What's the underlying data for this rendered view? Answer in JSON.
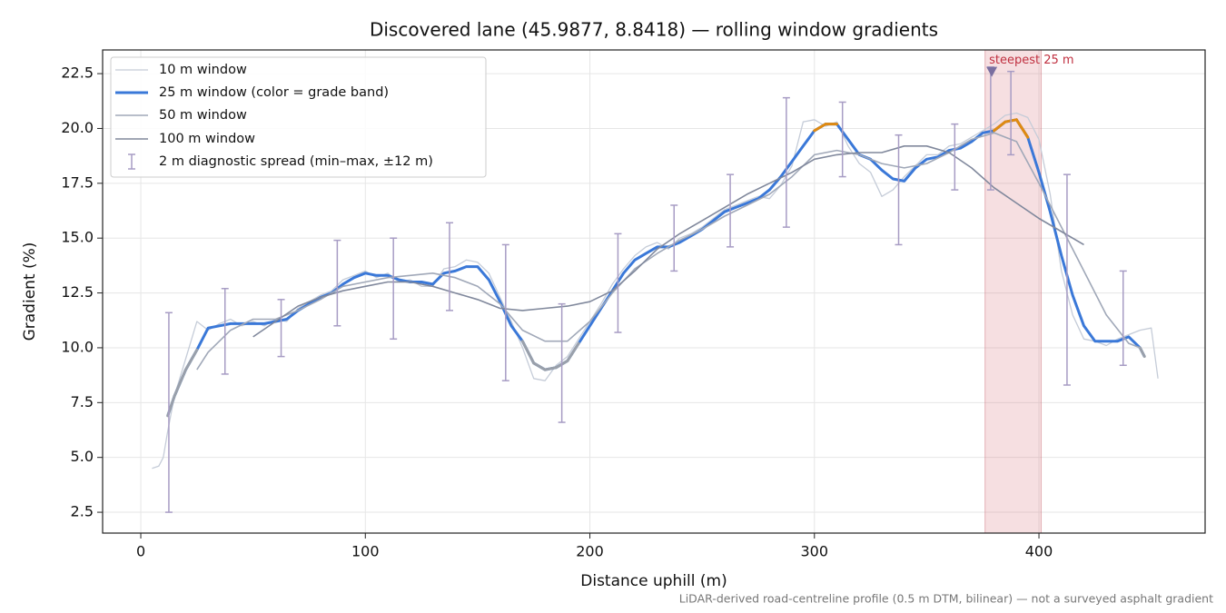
{
  "chart_data": {
    "type": "line",
    "title": "Discovered lane (45.9877, 8.8418) — rolling window gradients",
    "x_label": "Distance uphill (m)",
    "y_label": "Gradient (%)",
    "footnote": "LiDAR-derived road-centreline profile (0.5 m DTM, bilinear) — not a surveyed asphalt gradient",
    "xlim": [
      -17,
      474
    ],
    "ylim": [
      1.55,
      23.58
    ],
    "xticks": [
      0,
      100,
      200,
      300,
      400
    ],
    "yticks": [
      2.5,
      5.0,
      7.5,
      10.0,
      12.5,
      15.0,
      17.5,
      20.0,
      22.5
    ],
    "grid": true,
    "legend": "upper left",
    "series": [
      {
        "name": "10 m window",
        "color": "#c5ccd8",
        "width": 1.3,
        "x": [
          5,
          8,
          10,
          12,
          15,
          20,
          25,
          30,
          35,
          40,
          45,
          50,
          55,
          60,
          65,
          70,
          75,
          80,
          85,
          90,
          95,
          100,
          105,
          110,
          115,
          120,
          125,
          130,
          135,
          140,
          145,
          150,
          155,
          160,
          165,
          170,
          175,
          180,
          185,
          190,
          195,
          200,
          205,
          210,
          215,
          220,
          225,
          230,
          235,
          240,
          245,
          250,
          255,
          260,
          265,
          270,
          275,
          280,
          285,
          290,
          295,
          300,
          305,
          310,
          315,
          320,
          325,
          330,
          335,
          340,
          345,
          350,
          355,
          360,
          365,
          370,
          375,
          380,
          385,
          390,
          395,
          400,
          405,
          410,
          415,
          420,
          425,
          430,
          435,
          440,
          445,
          450,
          453
        ],
        "values": [
          4.5,
          4.6,
          5.0,
          6.2,
          7.8,
          9.5,
          11.2,
          10.8,
          11.1,
          11.3,
          11.0,
          11.2,
          11.0,
          11.3,
          11.2,
          11.8,
          12.1,
          12.4,
          12.6,
          13.1,
          13.3,
          13.5,
          13.2,
          13.4,
          13.0,
          13.1,
          12.8,
          12.8,
          13.6,
          13.7,
          14.0,
          13.9,
          13.4,
          12.3,
          11.2,
          10.0,
          8.6,
          8.5,
          9.2,
          9.6,
          10.4,
          11.2,
          12.0,
          12.9,
          13.6,
          14.2,
          14.6,
          14.8,
          14.5,
          15.0,
          15.2,
          15.5,
          15.9,
          16.3,
          16.5,
          16.7,
          16.9,
          16.8,
          17.4,
          18.3,
          20.3,
          20.4,
          20.1,
          20.3,
          19.2,
          18.4,
          18.0,
          16.9,
          17.2,
          17.8,
          18.3,
          18.8,
          18.8,
          19.2,
          19.3,
          19.6,
          19.9,
          20.2,
          20.6,
          20.7,
          20.5,
          19.5,
          17.0,
          13.5,
          11.5,
          10.4,
          10.3,
          10.1,
          10.4,
          10.6,
          10.8,
          10.9,
          8.6
        ]
      },
      {
        "name": "25 m window (color = grade band)",
        "color": "#3a78d8",
        "width": 3,
        "x": [
          12,
          15,
          20,
          25,
          30,
          35,
          40,
          45,
          50,
          55,
          60,
          65,
          70,
          75,
          80,
          85,
          90,
          95,
          100,
          105,
          110,
          115,
          120,
          125,
          130,
          135,
          140,
          145,
          150,
          155,
          160,
          165,
          170,
          175,
          180,
          185,
          190,
          195,
          200,
          205,
          210,
          215,
          220,
          225,
          230,
          235,
          240,
          245,
          250,
          255,
          260,
          265,
          270,
          275,
          280,
          285,
          290,
          295,
          300,
          305,
          310,
          315,
          320,
          325,
          330,
          335,
          340,
          345,
          350,
          355,
          360,
          365,
          370,
          375,
          380,
          385,
          390,
          395,
          400,
          405,
          410,
          415,
          420,
          425,
          430,
          435,
          440,
          445,
          447
        ],
        "values": [
          6.9,
          7.8,
          9.0,
          9.9,
          10.9,
          11.0,
          11.1,
          11.1,
          11.1,
          11.1,
          11.2,
          11.3,
          11.7,
          12.0,
          12.3,
          12.5,
          12.9,
          13.2,
          13.4,
          13.3,
          13.3,
          13.1,
          13.0,
          13.0,
          12.9,
          13.4,
          13.5,
          13.7,
          13.7,
          13.1,
          12.1,
          11.0,
          10.3,
          9.3,
          9.0,
          9.1,
          9.4,
          10.2,
          11.0,
          11.8,
          12.6,
          13.4,
          14.0,
          14.3,
          14.6,
          14.6,
          14.8,
          15.1,
          15.4,
          15.8,
          16.2,
          16.4,
          16.6,
          16.8,
          17.2,
          17.8,
          18.5,
          19.2,
          19.9,
          20.2,
          20.2,
          19.5,
          18.8,
          18.6,
          18.1,
          17.7,
          17.6,
          18.2,
          18.6,
          18.7,
          19.0,
          19.1,
          19.4,
          19.8,
          19.9,
          20.3,
          20.4,
          19.6,
          18.0,
          16.2,
          14.2,
          12.4,
          11.0,
          10.3,
          10.3,
          10.3,
          10.5,
          10.0,
          9.6
        ]
      },
      {
        "name": "50 m window",
        "color": "#a0a8b8",
        "width": 1.6,
        "x": [
          25,
          30,
          40,
          50,
          60,
          70,
          80,
          90,
          100,
          110,
          120,
          130,
          140,
          150,
          160,
          170,
          180,
          190,
          200,
          210,
          220,
          230,
          240,
          250,
          260,
          270,
          280,
          290,
          300,
          310,
          320,
          330,
          340,
          350,
          360,
          370,
          380,
          390,
          400,
          410,
          420,
          430,
          440,
          445
        ],
        "values": [
          9.0,
          9.8,
          10.8,
          11.3,
          11.3,
          11.7,
          12.2,
          12.8,
          13.0,
          13.2,
          13.3,
          13.4,
          13.2,
          12.8,
          12.0,
          10.8,
          10.3,
          10.3,
          11.2,
          12.5,
          13.6,
          14.3,
          14.9,
          15.4,
          16.0,
          16.5,
          17.0,
          17.8,
          18.8,
          19.0,
          18.8,
          18.4,
          18.2,
          18.4,
          18.9,
          19.5,
          19.8,
          19.4,
          17.5,
          15.5,
          13.5,
          11.5,
          10.2,
          10.0
        ]
      },
      {
        "name": "100 m window",
        "color": "#80889c",
        "width": 1.6,
        "x": [
          50,
          60,
          70,
          80,
          90,
          100,
          110,
          120,
          130,
          140,
          150,
          160,
          170,
          180,
          190,
          200,
          210,
          220,
          230,
          240,
          250,
          260,
          270,
          280,
          290,
          300,
          310,
          320,
          330,
          340,
          350,
          360,
          370,
          380,
          390,
          400,
          410,
          420
        ],
        "values": [
          10.5,
          11.2,
          11.9,
          12.3,
          12.6,
          12.8,
          13.0,
          13.0,
          12.8,
          12.5,
          12.2,
          11.8,
          11.7,
          11.8,
          11.9,
          12.1,
          12.6,
          13.5,
          14.5,
          15.2,
          15.8,
          16.4,
          17.0,
          17.5,
          18.0,
          18.6,
          18.8,
          18.9,
          18.9,
          19.2,
          19.2,
          18.9,
          18.2,
          17.3,
          16.6,
          15.9,
          15.3,
          14.7
        ]
      }
    ],
    "grade_bands": [
      {
        "range": [
          null,
          10
        ],
        "color": "#9aa0aa"
      },
      {
        "range": [
          20,
          null
        ],
        "color": "#e08a10"
      }
    ],
    "error_bars": {
      "name": "2 m diagnostic spread (min–max, ±12 m)",
      "color": "#a79cc4",
      "x": [
        12.5,
        37.5,
        62.5,
        87.5,
        112.5,
        137.5,
        162.5,
        187.5,
        212.5,
        237.5,
        262.5,
        287.5,
        312.5,
        337.5,
        362.5,
        378.5,
        387.5,
        412.5,
        437.5
      ],
      "low": [
        2.5,
        8.8,
        9.6,
        11.0,
        10.4,
        11.7,
        8.5,
        6.6,
        10.7,
        13.5,
        14.6,
        15.5,
        17.8,
        14.7,
        17.2,
        17.2,
        18.8,
        8.3,
        9.2
      ],
      "high": [
        11.6,
        12.7,
        12.2,
        14.9,
        15.0,
        15.7,
        14.7,
        12.0,
        15.2,
        16.5,
        17.9,
        21.4,
        21.2,
        19.7,
        20.2,
        22.8,
        22.6,
        17.9,
        13.5
      ]
    },
    "highlight_span": [
      376,
      401
    ],
    "annotation": {
      "text": "steepest 25 m",
      "x": 379,
      "y": 22.6,
      "color": "#c03040"
    }
  }
}
